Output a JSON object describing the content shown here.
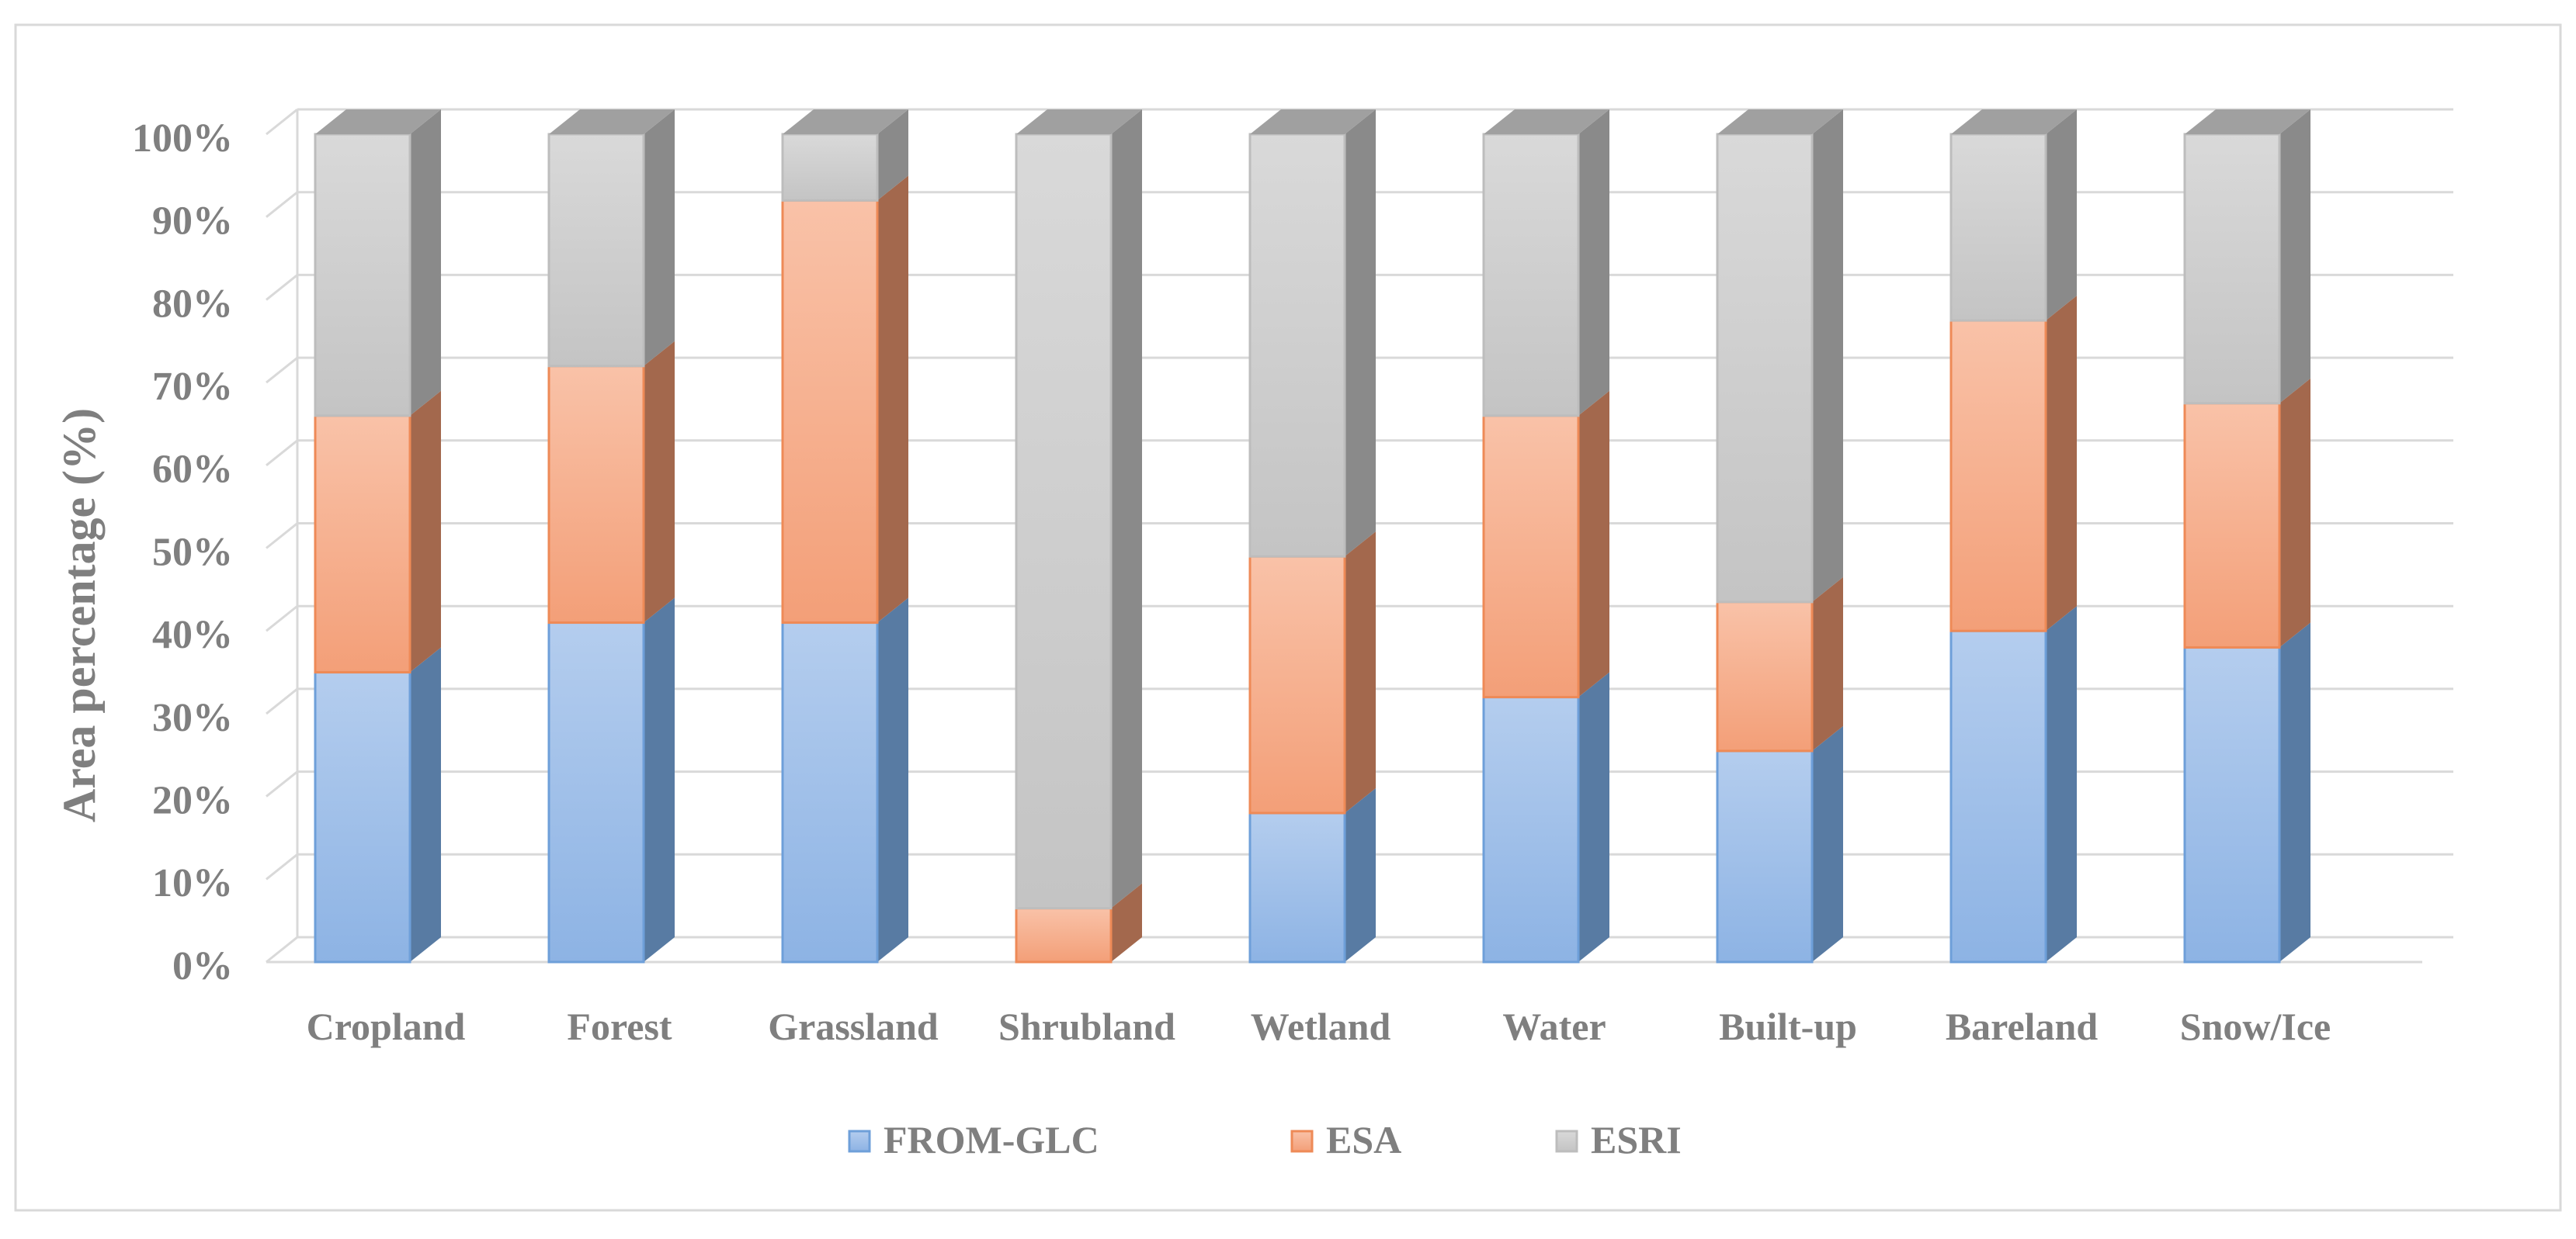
{
  "chart_data": {
    "type": "bar",
    "stacked": true,
    "style": "3d",
    "ylabel": "Area  percentage (%)",
    "ylim": [
      0,
      100
    ],
    "yticks": [
      "0%",
      "10%",
      "20%",
      "30%",
      "40%",
      "50%",
      "60%",
      "70%",
      "80%",
      "90%",
      "100%"
    ],
    "grid": true,
    "legend_position": "bottom",
    "categories": [
      "Cropland",
      "Forest",
      "Grassland",
      "Shrubland",
      "Wetland",
      "Water",
      "Built-up",
      "Bareland",
      "Snow/Ice"
    ],
    "series": [
      {
        "name": "FROM-GLC",
        "color": "#8fb4e3",
        "values": [
          35,
          41,
          41,
          0,
          18,
          32,
          25.5,
          40,
          38
        ]
      },
      {
        "name": "ESA",
        "color": "#f4a582",
        "values": [
          31,
          31,
          51,
          6.5,
          31,
          34,
          18,
          37.5,
          29.5
        ]
      },
      {
        "name": "ESRI",
        "color": "#c9c9c9",
        "values": [
          34,
          28,
          8,
          93.5,
          51,
          34,
          56.5,
          22.5,
          32.5
        ]
      }
    ]
  }
}
